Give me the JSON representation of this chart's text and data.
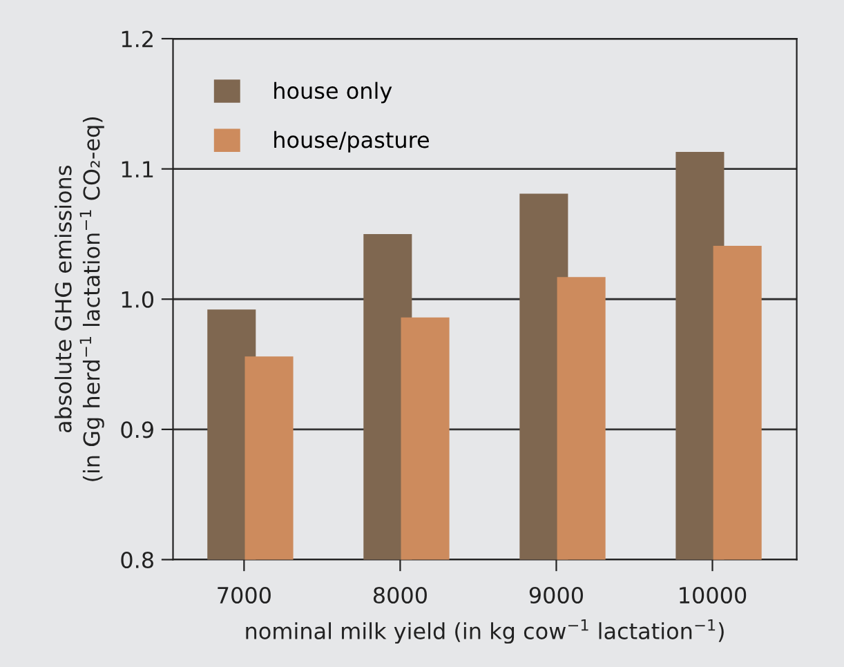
{
  "chart_data": {
    "type": "bar",
    "xlabel": "nominal milk yield (in kg cow$^{−1}$ lactation$^{−1}$)",
    "ylabel": "absolute GHG emissions\n(in Gg herd$^{−1}$ lactation$^{−1}$ CO₂-eq)",
    "categories": [
      "7000",
      "8000",
      "9000",
      "10000"
    ],
    "series": [
      {
        "name": "house only",
        "color": "#7f6750",
        "values": [
          0.992,
          1.05,
          1.081,
          1.113
        ]
      },
      {
        "name": "house/pasture",
        "color": "#cd8b5d",
        "values": [
          0.956,
          0.986,
          1.017,
          1.041
        ]
      }
    ],
    "ylim": [
      0.8,
      1.2
    ],
    "yticks": [
      0.8,
      0.9,
      {
        "value": 1,
        "label": "1.0"
      },
      1.1,
      1.2
    ],
    "grid": "y",
    "legend": "top left"
  }
}
